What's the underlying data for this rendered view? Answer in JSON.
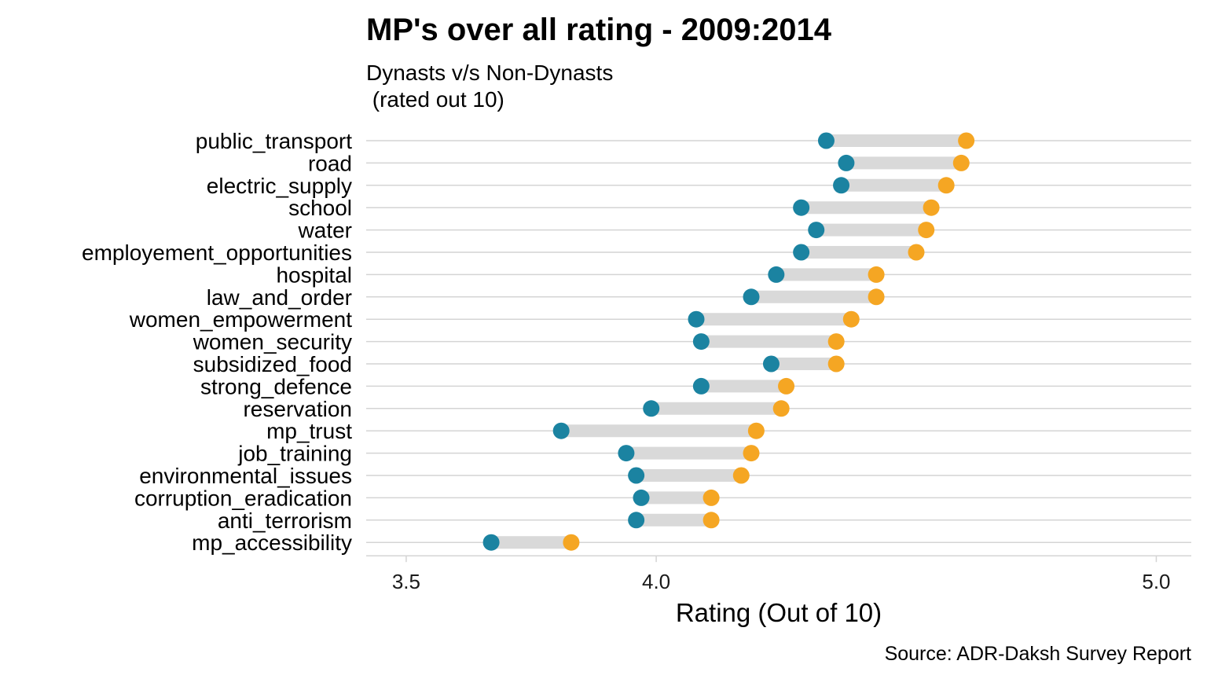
{
  "chart_data": {
    "type": "dumbbell",
    "title": "MP's over all rating - 2009:2014",
    "subtitle_line1": "Dynasts v/s Non-Dynasts",
    "subtitle_line2": " (rated out 10)",
    "xlabel": "Rating (Out of 10)",
    "caption": "Source: ADR-Daksh Survey Report",
    "xlim": [
      3.42,
      5.07
    ],
    "xticks": [
      3.5,
      4.0,
      5.0
    ],
    "xtick_labels": [
      "3.5",
      "4.0",
      "5.0"
    ],
    "colors": {
      "low": "#1b83a1",
      "high": "#f5a623",
      "segment": "#d9d9d9",
      "grid": "#d4d4d4"
    },
    "categories": [
      "public_transport",
      "road",
      "electric_supply",
      "school",
      "water",
      "employement_opportunities",
      "hospital",
      "law_and_order",
      "women_empowerment",
      "women_security",
      "subsidized_food",
      "strong_defence",
      "reservation",
      "mp_trust",
      "job_training",
      "environmental_issues",
      "corruption_eradication",
      "anti_terrorism",
      "mp_accessibility"
    ],
    "low_values": [
      4.34,
      4.38,
      4.37,
      4.29,
      4.32,
      4.29,
      4.24,
      4.19,
      4.08,
      4.09,
      4.23,
      4.09,
      3.99,
      3.81,
      3.94,
      3.96,
      3.97,
      3.96,
      3.67
    ],
    "high_values": [
      4.62,
      4.61,
      4.58,
      4.55,
      4.54,
      4.52,
      4.44,
      4.44,
      4.39,
      4.36,
      4.36,
      4.26,
      4.25,
      4.2,
      4.19,
      4.17,
      4.11,
      4.11,
      3.83
    ]
  }
}
